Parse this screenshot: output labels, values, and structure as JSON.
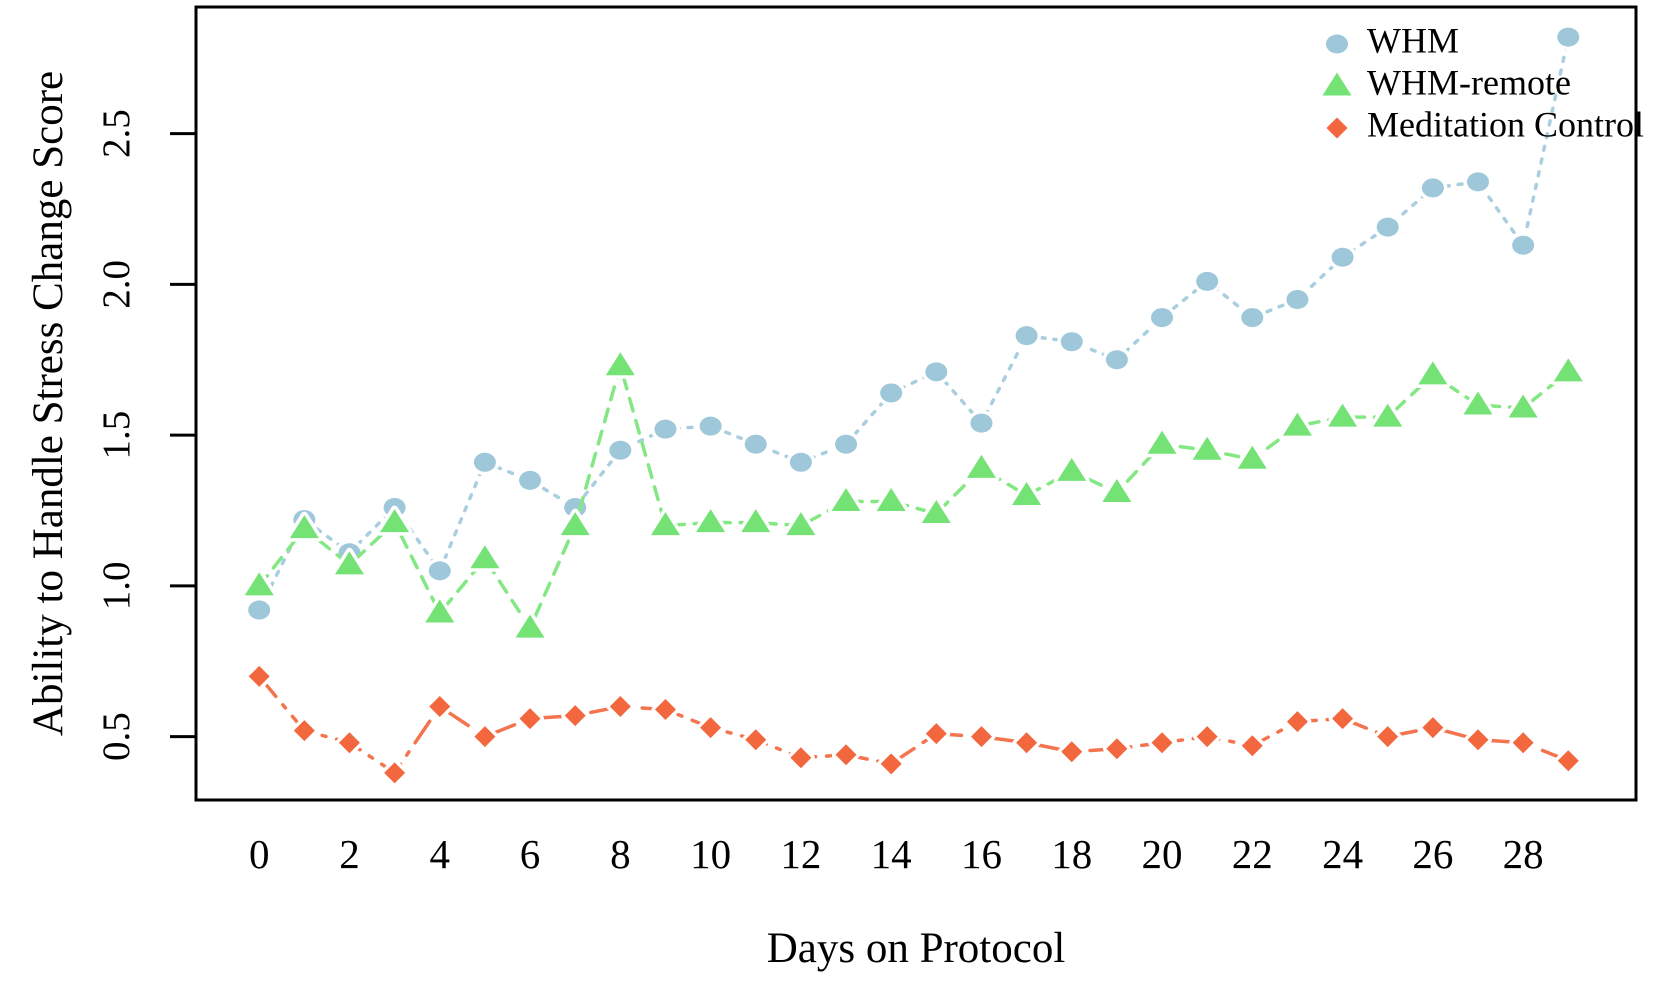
{
  "figure": {
    "background": "#ffffff",
    "axis_color": "#000000"
  },
  "chart_data": {
    "type": "line",
    "title": "",
    "xlabel": "Days on Protocol",
    "ylabel": "Ability to Handle Stress Change Score",
    "xlim": [
      -1.4,
      30.5
    ],
    "ylim": [
      0.29,
      2.92
    ],
    "grid": false,
    "x": [
      0,
      1,
      2,
      3,
      4,
      5,
      6,
      7,
      8,
      9,
      10,
      11,
      12,
      13,
      14,
      15,
      16,
      17,
      18,
      19,
      20,
      21,
      22,
      23,
      24,
      25,
      26,
      27,
      28,
      29
    ],
    "x_ticks": [
      0,
      2,
      4,
      6,
      8,
      10,
      12,
      14,
      16,
      18,
      20,
      22,
      24,
      26,
      28
    ],
    "y_ticks": [
      {
        "value": 0.5,
        "label": "0.5"
      },
      {
        "value": 1.0,
        "label": "1.0"
      },
      {
        "value": 1.5,
        "label": "1.5"
      },
      {
        "value": 2.0,
        "label": "2.0"
      },
      {
        "value": 2.5,
        "label": "2.5"
      }
    ],
    "series": [
      {
        "name": "WHM",
        "marker": "circle",
        "line_style": "dotted",
        "color": "#9ec7da",
        "line_color": "#a9cfdf",
        "values": [
          0.92,
          1.22,
          1.11,
          1.26,
          1.05,
          1.41,
          1.35,
          1.26,
          1.45,
          1.52,
          1.53,
          1.47,
          1.41,
          1.47,
          1.64,
          1.71,
          1.54,
          1.83,
          1.81,
          1.75,
          1.89,
          2.01,
          1.89,
          1.95,
          2.09,
          2.19,
          2.32,
          2.34,
          2.13,
          2.82
        ]
      },
      {
        "name": "WHM-remote",
        "marker": "triangle",
        "line_style": "dashed",
        "color": "#74e274",
        "line_color": "#83e883",
        "values": [
          1.0,
          1.19,
          1.07,
          1.21,
          0.91,
          1.09,
          0.86,
          1.2,
          1.73,
          1.2,
          1.21,
          1.21,
          1.2,
          1.28,
          1.28,
          1.24,
          1.39,
          1.3,
          1.38,
          1.31,
          1.47,
          1.45,
          1.42,
          1.53,
          1.56,
          1.56,
          1.7,
          1.6,
          1.59,
          1.71
        ]
      },
      {
        "name": "Meditation Control",
        "marker": "diamond",
        "line_style": "dashdot",
        "color": "#f2673e",
        "line_color": "#f3744e",
        "values": [
          0.7,
          0.52,
          0.48,
          0.38,
          0.6,
          0.5,
          0.56,
          0.57,
          0.6,
          0.59,
          0.53,
          0.49,
          0.43,
          0.44,
          0.41,
          0.51,
          0.5,
          0.48,
          0.45,
          0.46,
          0.48,
          0.5,
          0.47,
          0.55,
          0.56,
          0.5,
          0.53,
          0.49,
          0.48,
          0.42
        ]
      }
    ],
    "legend": {
      "position": "top-right",
      "items": [
        "WHM",
        "WHM-remote",
        "Meditation Control"
      ]
    }
  }
}
